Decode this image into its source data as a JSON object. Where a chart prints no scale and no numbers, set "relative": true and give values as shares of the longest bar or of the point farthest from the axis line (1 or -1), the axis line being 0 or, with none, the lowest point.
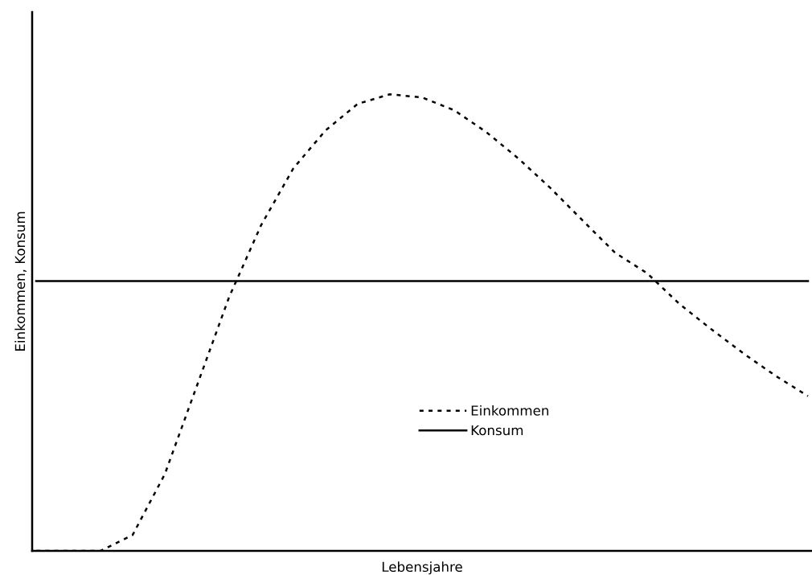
{
  "chart_data": {
    "type": "line",
    "relative": true,
    "xlabel": "Lebensjahre",
    "ylabel": "Einkommen, Konsum",
    "categories": [
      null,
      null,
      null,
      null,
      null,
      null,
      null,
      null,
      null,
      null,
      null,
      null,
      null,
      null,
      null,
      null,
      null,
      null,
      null,
      null,
      null,
      null,
      null,
      null,
      null
    ],
    "series": [
      {
        "name": "Einkommen",
        "color": "#000000",
        "line_style": "dotted",
        "values": [
          0,
          0,
          0,
          0.035,
          0.168,
          0.362,
          0.556,
          0.714,
          0.838,
          0.921,
          0.979,
          1.0,
          0.993,
          0.965,
          0.917,
          0.859,
          0.794,
          0.723,
          0.653,
          0.608,
          0.541,
          0.485,
          0.432,
          0.383,
          0.339
        ]
      },
      {
        "name": "Konsum",
        "color": "#000000",
        "line_style": "solid",
        "values": [
          0.591,
          0.591,
          0.591,
          0.591,
          0.591,
          0.591,
          0.591,
          0.591,
          0.591,
          0.591,
          0.591,
          0.591,
          0.591,
          0.591,
          0.591,
          0.591,
          0.591,
          0.591,
          0.591,
          0.591,
          0.591,
          0.591,
          0.591,
          0.591,
          0.591
        ]
      }
    ],
    "legend": "bottom",
    "grid": false,
    "marker": "none"
  }
}
